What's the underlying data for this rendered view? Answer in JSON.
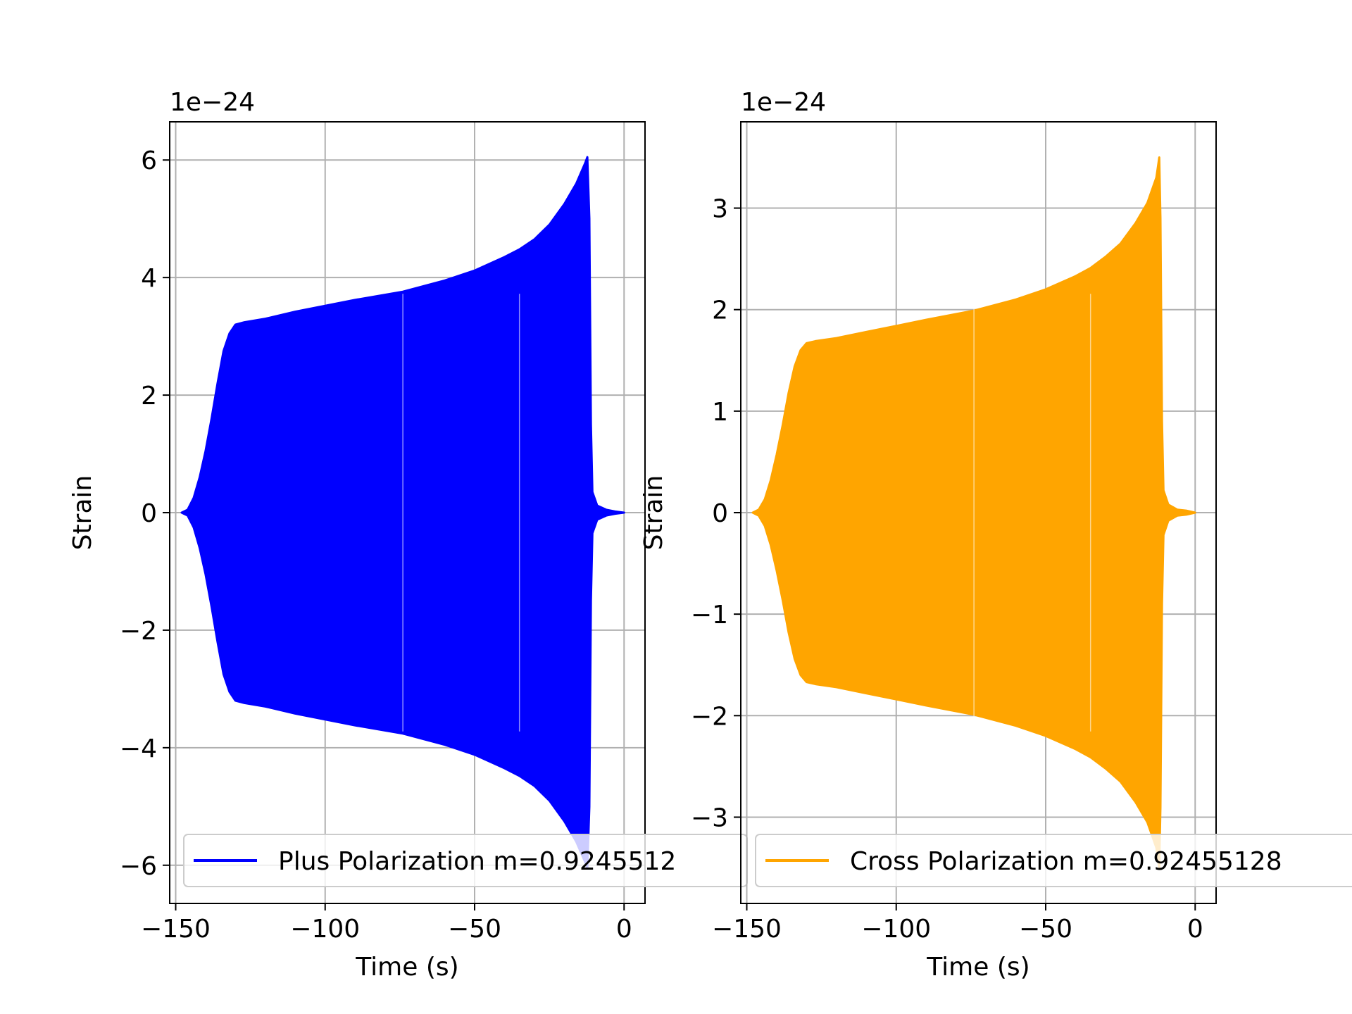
{
  "chart_data": [
    {
      "type": "line",
      "xlabel": "Time (s)",
      "ylabel": "Strain",
      "y_offset_label": "1e−24",
      "xlim": [
        -152,
        7
      ],
      "ylim": [
        -6.65,
        6.65
      ],
      "xticks": [
        -150,
        -100,
        -50,
        0
      ],
      "xtick_labels": [
        "−150",
        "−100",
        "−50",
        "0"
      ],
      "yticks": [
        -6,
        -4,
        -2,
        0,
        2,
        4,
        6
      ],
      "ytick_labels": [
        "−6",
        "−4",
        "−2",
        "0",
        "2",
        "4",
        "6"
      ],
      "grid": true,
      "legend_position": "lower-center",
      "series": [
        {
          "name": "Plus Polarization m=0.9245512",
          "color": "#0000ff",
          "envelope_upper": [
            [
              -148,
              0.0
            ],
            [
              -146,
              0.05
            ],
            [
              -144,
              0.25
            ],
            [
              -142,
              0.6
            ],
            [
              -140,
              1.05
            ],
            [
              -138,
              1.6
            ],
            [
              -136,
              2.2
            ],
            [
              -134,
              2.75
            ],
            [
              -132,
              3.05
            ],
            [
              -130,
              3.2
            ],
            [
              -127,
              3.24
            ],
            [
              -120,
              3.3
            ],
            [
              -110,
              3.42
            ],
            [
              -100,
              3.52
            ],
            [
              -90,
              3.62
            ],
            [
              -74,
              3.76
            ],
            [
              -60,
              3.95
            ],
            [
              -50,
              4.12
            ],
            [
              -40,
              4.35
            ],
            [
              -35,
              4.48
            ],
            [
              -30,
              4.65
            ],
            [
              -25,
              4.9
            ],
            [
              -20,
              5.25
            ],
            [
              -16,
              5.6
            ],
            [
              -13,
              5.95
            ],
            [
              -12.3,
              6.05
            ],
            [
              -11.6,
              5.0
            ],
            [
              -11.1,
              1.5
            ],
            [
              -10.6,
              0.35
            ],
            [
              -9,
              0.12
            ],
            [
              -6,
              0.05
            ],
            [
              -3,
              0.02
            ],
            [
              0,
              0.0
            ]
          ],
          "envelope_lower": [
            [
              -148,
              0.0
            ],
            [
              -146,
              -0.05
            ],
            [
              -144,
              -0.25
            ],
            [
              -142,
              -0.6
            ],
            [
              -140,
              -1.05
            ],
            [
              -138,
              -1.6
            ],
            [
              -136,
              -2.2
            ],
            [
              -134,
              -2.75
            ],
            [
              -132,
              -3.05
            ],
            [
              -130,
              -3.2
            ],
            [
              -127,
              -3.24
            ],
            [
              -120,
              -3.3
            ],
            [
              -110,
              -3.42
            ],
            [
              -100,
              -3.52
            ],
            [
              -90,
              -3.62
            ],
            [
              -74,
              -3.76
            ],
            [
              -60,
              -3.95
            ],
            [
              -50,
              -4.12
            ],
            [
              -40,
              -4.35
            ],
            [
              -35,
              -4.48
            ],
            [
              -30,
              -4.65
            ],
            [
              -25,
              -4.9
            ],
            [
              -20,
              -5.25
            ],
            [
              -16,
              -5.6
            ],
            [
              -13,
              -5.95
            ],
            [
              -12.3,
              -6.05
            ],
            [
              -11.6,
              -5.0
            ],
            [
              -11.1,
              -1.5
            ],
            [
              -10.6,
              -0.35
            ],
            [
              -9,
              -0.12
            ],
            [
              -6,
              -0.05
            ],
            [
              -3,
              -0.02
            ],
            [
              0,
              0.0
            ]
          ]
        }
      ]
    },
    {
      "type": "line",
      "xlabel": "Time (s)",
      "ylabel": "Strain",
      "y_offset_label": "1e−24",
      "xlim": [
        -152,
        7
      ],
      "ylim": [
        -3.85,
        3.85
      ],
      "xticks": [
        -150,
        -100,
        -50,
        0
      ],
      "xtick_labels": [
        "−150",
        "−100",
        "−50",
        "0"
      ],
      "yticks": [
        -3,
        -2,
        -1,
        0,
        1,
        2,
        3
      ],
      "ytick_labels": [
        "−3",
        "−2",
        "−1",
        "0",
        "1",
        "2",
        "3"
      ],
      "grid": true,
      "legend_position": "lower-center",
      "series": [
        {
          "name": "Cross Polarization m=0.92455128",
          "color": "#ffa500",
          "envelope_upper": [
            [
              -148,
              0.0
            ],
            [
              -146,
              0.03
            ],
            [
              -144,
              0.13
            ],
            [
              -142,
              0.32
            ],
            [
              -140,
              0.57
            ],
            [
              -138,
              0.86
            ],
            [
              -136,
              1.18
            ],
            [
              -134,
              1.44
            ],
            [
              -132,
              1.6
            ],
            [
              -130,
              1.67
            ],
            [
              -127,
              1.69
            ],
            [
              -120,
              1.72
            ],
            [
              -110,
              1.78
            ],
            [
              -100,
              1.84
            ],
            [
              -90,
              1.9
            ],
            [
              -74,
              1.99
            ],
            [
              -60,
              2.1
            ],
            [
              -50,
              2.2
            ],
            [
              -40,
              2.33
            ],
            [
              -35,
              2.41
            ],
            [
              -30,
              2.52
            ],
            [
              -25,
              2.65
            ],
            [
              -20,
              2.85
            ],
            [
              -16,
              3.05
            ],
            [
              -13,
              3.3
            ],
            [
              -12,
              3.5
            ],
            [
              -11.6,
              2.9
            ],
            [
              -11.1,
              0.9
            ],
            [
              -10.6,
              0.22
            ],
            [
              -9,
              0.08
            ],
            [
              -6,
              0.03
            ],
            [
              -3,
              0.02
            ],
            [
              0,
              0.0
            ]
          ],
          "envelope_lower": [
            [
              -148,
              0.0
            ],
            [
              -146,
              -0.03
            ],
            [
              -144,
              -0.13
            ],
            [
              -142,
              -0.32
            ],
            [
              -140,
              -0.57
            ],
            [
              -138,
              -0.86
            ],
            [
              -136,
              -1.18
            ],
            [
              -134,
              -1.44
            ],
            [
              -132,
              -1.6
            ],
            [
              -130,
              -1.67
            ],
            [
              -127,
              -1.69
            ],
            [
              -120,
              -1.72
            ],
            [
              -110,
              -1.78
            ],
            [
              -100,
              -1.84
            ],
            [
              -90,
              -1.9
            ],
            [
              -74,
              -1.99
            ],
            [
              -60,
              -2.1
            ],
            [
              -50,
              -2.2
            ],
            [
              -40,
              -2.33
            ],
            [
              -35,
              -2.41
            ],
            [
              -30,
              -2.52
            ],
            [
              -25,
              -2.65
            ],
            [
              -20,
              -2.85
            ],
            [
              -16,
              -3.05
            ],
            [
              -13,
              -3.3
            ],
            [
              -12,
              -3.5
            ],
            [
              -11.6,
              -2.9
            ],
            [
              -11.1,
              -0.9
            ],
            [
              -10.6,
              -0.22
            ],
            [
              -9,
              -0.08
            ],
            [
              -6,
              -0.03
            ],
            [
              -3,
              -0.02
            ],
            [
              0,
              0.0
            ]
          ]
        }
      ]
    }
  ]
}
